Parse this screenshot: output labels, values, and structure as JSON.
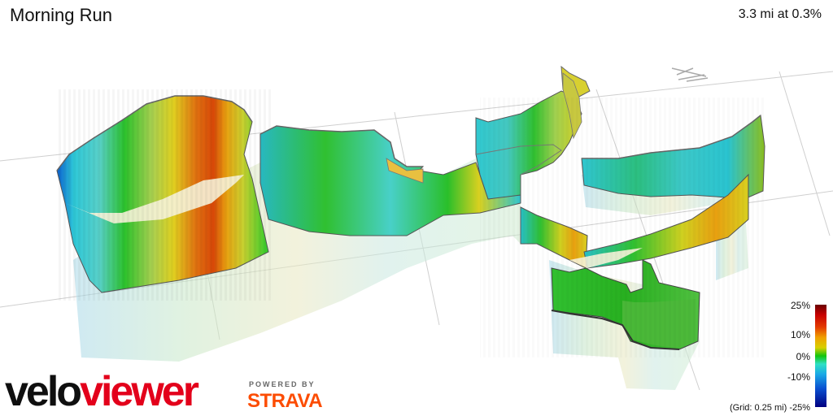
{
  "header": {
    "title": "Morning Run",
    "stats": "3.3 mi at 0.3%"
  },
  "legend": {
    "labels": [
      "25%",
      "10%",
      "0%",
      "-10%",
      "-25%"
    ],
    "grid_note": "(Grid: 0.25 mi)"
  },
  "branding": {
    "velo": "velo",
    "viewer": "viewer",
    "powered_by": "POWERED BY",
    "strava": "STRAVA"
  },
  "colors": {
    "brand_red": "#e3001b",
    "strava_orange": "#fc4c02",
    "grid": "#cfcfcf"
  },
  "icons": [
    "north-arrow-icon"
  ]
}
